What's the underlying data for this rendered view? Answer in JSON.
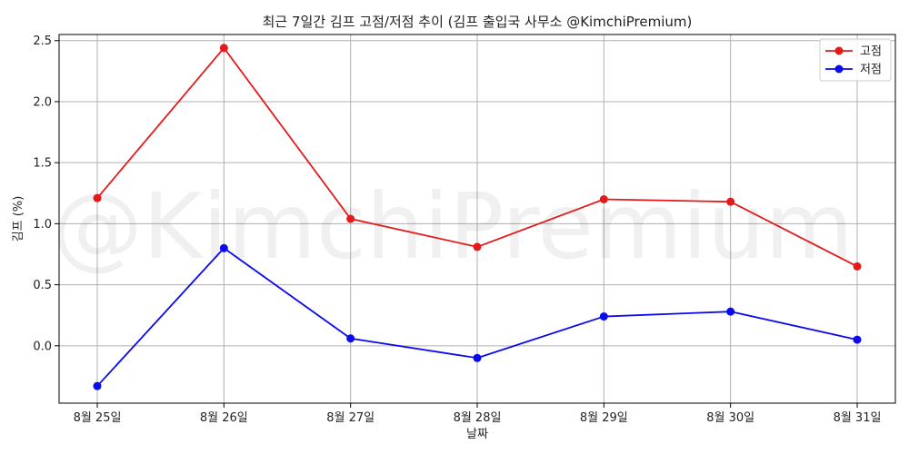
{
  "chart_data": {
    "type": "line",
    "title": "최근 7일간 김프 고점/저점 추이 (김프 출입국 사무소 @KimchiPremium)",
    "xlabel": "날짜",
    "ylabel": "김프 (%)",
    "categories": [
      "8월 25일",
      "8월 26일",
      "8월 27일",
      "8월 28일",
      "8월 29일",
      "8월 30일",
      "8월 31일"
    ],
    "series": [
      {
        "name": "고점",
        "color": "#e41a1a",
        "values": [
          1.21,
          2.44,
          1.04,
          0.81,
          1.2,
          1.18,
          0.65
        ]
      },
      {
        "name": "저점",
        "color": "#0a0aee",
        "values": [
          -0.33,
          0.8,
          0.06,
          -0.1,
          0.24,
          0.28,
          0.05
        ]
      }
    ],
    "ylim": [
      -0.47,
      2.55
    ],
    "yticks": [
      "0.0",
      "0.5",
      "1.0",
      "1.5",
      "2.0",
      "2.5"
    ],
    "grid": true,
    "legend_position": "top-right",
    "watermark": "@KimchiPremium"
  }
}
